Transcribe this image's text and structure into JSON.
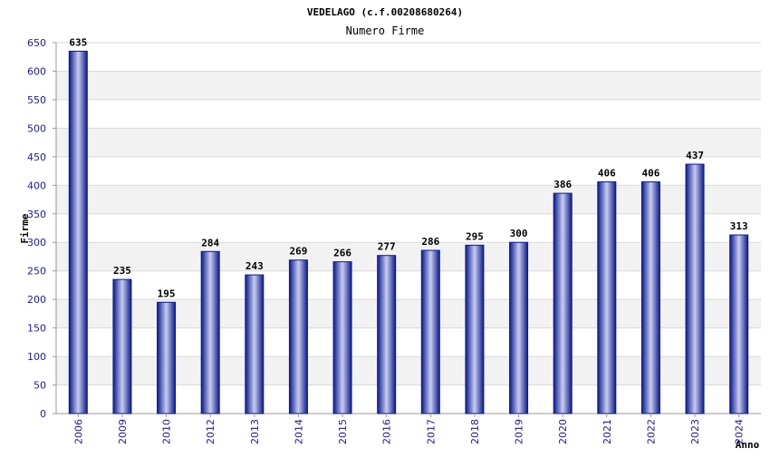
{
  "chart_data": {
    "type": "bar",
    "title": "VEDELAGO (c.f.00208680264)",
    "subtitle": "Numero Firme",
    "ylabel": "Firme",
    "xlabel": "Anno",
    "ylim": [
      0,
      650
    ],
    "ytick_step": 50,
    "grid": true,
    "categories": [
      "2006",
      "2009",
      "2010",
      "2012",
      "2013",
      "2014",
      "2015",
      "2016",
      "2017",
      "2018",
      "2019",
      "2020",
      "2021",
      "2022",
      "2023",
      "2024"
    ],
    "values": [
      635,
      235,
      195,
      284,
      243,
      269,
      266,
      277,
      286,
      295,
      300,
      386,
      406,
      406,
      437,
      313
    ],
    "colors": {
      "bar_edge": "#0a1a8c",
      "bar_light": "#c8cdf0",
      "band": "#f2f2f2",
      "gridline": "#d9d9d9",
      "tick_text": "#1a1aa6"
    }
  }
}
